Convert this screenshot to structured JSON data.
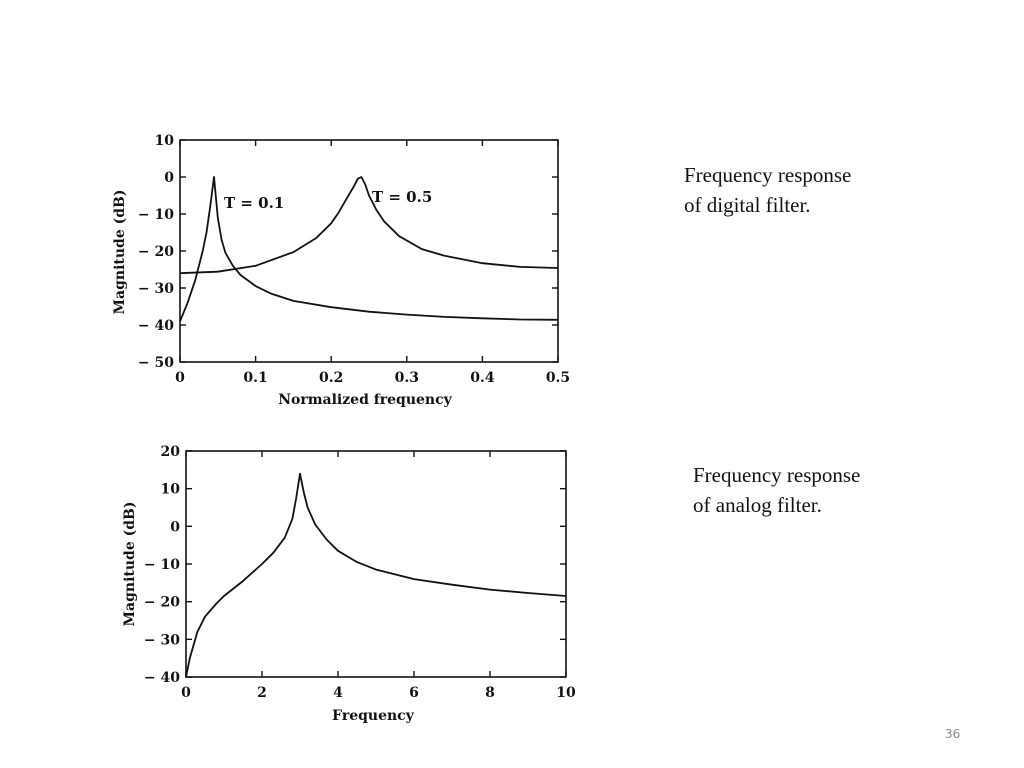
{
  "captions": {
    "digital": [
      "Frequency response",
      "of digital filter."
    ],
    "analog": [
      "Frequency response",
      "of analog filter."
    ]
  },
  "page_number": "36",
  "chart_data": [
    {
      "type": "line",
      "title": "",
      "xlabel": "Normalized frequency",
      "ylabel": "Magnitude (dB)",
      "xlim": [
        0,
        0.5
      ],
      "ylim": [
        -50,
        10
      ],
      "x_ticks": [
        "0",
        "0.1",
        "0.2",
        "0.3",
        "0.4",
        "0.5"
      ],
      "y_ticks": [
        "10",
        "0",
        "− 10",
        "− 20",
        "− 30",
        "− 40",
        "− 50"
      ],
      "annotations": [
        "T = 0.1",
        "T = 0.5"
      ],
      "series": [
        {
          "name": "T = 0.1",
          "x": [
            0,
            0.01,
            0.02,
            0.03,
            0.035,
            0.04,
            0.045,
            0.05,
            0.055,
            0.06,
            0.07,
            0.08,
            0.1,
            0.12,
            0.15,
            0.2,
            0.25,
            0.3,
            0.35,
            0.4,
            0.45,
            0.5
          ],
          "y": [
            -39,
            -34,
            -28,
            -20,
            -15,
            -8,
            0,
            -11,
            -17,
            -20.5,
            -24,
            -26.5,
            -29.5,
            -31.5,
            -33.5,
            -35.2,
            -36.4,
            -37.2,
            -37.8,
            -38.2,
            -38.5,
            -38.6
          ]
        },
        {
          "name": "T = 0.5",
          "x": [
            0,
            0.05,
            0.1,
            0.15,
            0.18,
            0.2,
            0.21,
            0.22,
            0.23,
            0.235,
            0.24,
            0.245,
            0.25,
            0.26,
            0.27,
            0.29,
            0.32,
            0.35,
            0.4,
            0.45,
            0.5
          ],
          "y": [
            -26,
            -25.6,
            -24,
            -20.3,
            -16.5,
            -12.5,
            -9.5,
            -6,
            -2.5,
            -0.5,
            0,
            -2,
            -5,
            -9,
            -12,
            -16,
            -19.5,
            -21.3,
            -23.3,
            -24.3,
            -24.6
          ]
        }
      ]
    },
    {
      "type": "line",
      "title": "",
      "xlabel": "Frequency",
      "ylabel": "Magnitude (dB)",
      "xlim": [
        0,
        10
      ],
      "ylim": [
        -40,
        20
      ],
      "x_ticks": [
        "0",
        "2",
        "4",
        "6",
        "8",
        "10"
      ],
      "y_ticks": [
        "20",
        "10",
        "0",
        "− 10",
        "− 20",
        "− 30",
        "− 40"
      ],
      "series": [
        {
          "name": "analog",
          "x": [
            0,
            0.1,
            0.3,
            0.5,
            0.8,
            1,
            1.5,
            2,
            2.3,
            2.6,
            2.8,
            2.9,
            3,
            3.1,
            3.2,
            3.4,
            3.7,
            4,
            4.5,
            5,
            6,
            7,
            8,
            9,
            10
          ],
          "y": [
            -40,
            -35,
            -28,
            -24,
            -20.5,
            -18.5,
            -14.5,
            -10,
            -7,
            -3,
            2,
            7.5,
            14,
            9,
            5,
            0.5,
            -3.5,
            -6.5,
            -9.5,
            -11.5,
            -14,
            -15.5,
            -16.8,
            -17.7,
            -18.5
          ]
        }
      ]
    }
  ]
}
